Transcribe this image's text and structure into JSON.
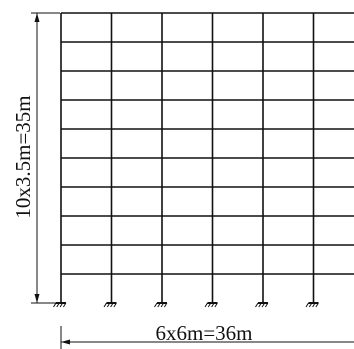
{
  "diagram": {
    "frame": {
      "bays": 6,
      "bay_width_m": 6,
      "stories": 10,
      "story_height_m": 3.5,
      "visible_bays": 5
    },
    "dimensions": {
      "vertical_label": "10x3.5m=35m",
      "horizontal_label": "6x6m=36m"
    },
    "colors": {
      "line": "#111111",
      "background": "#ffffff"
    }
  }
}
